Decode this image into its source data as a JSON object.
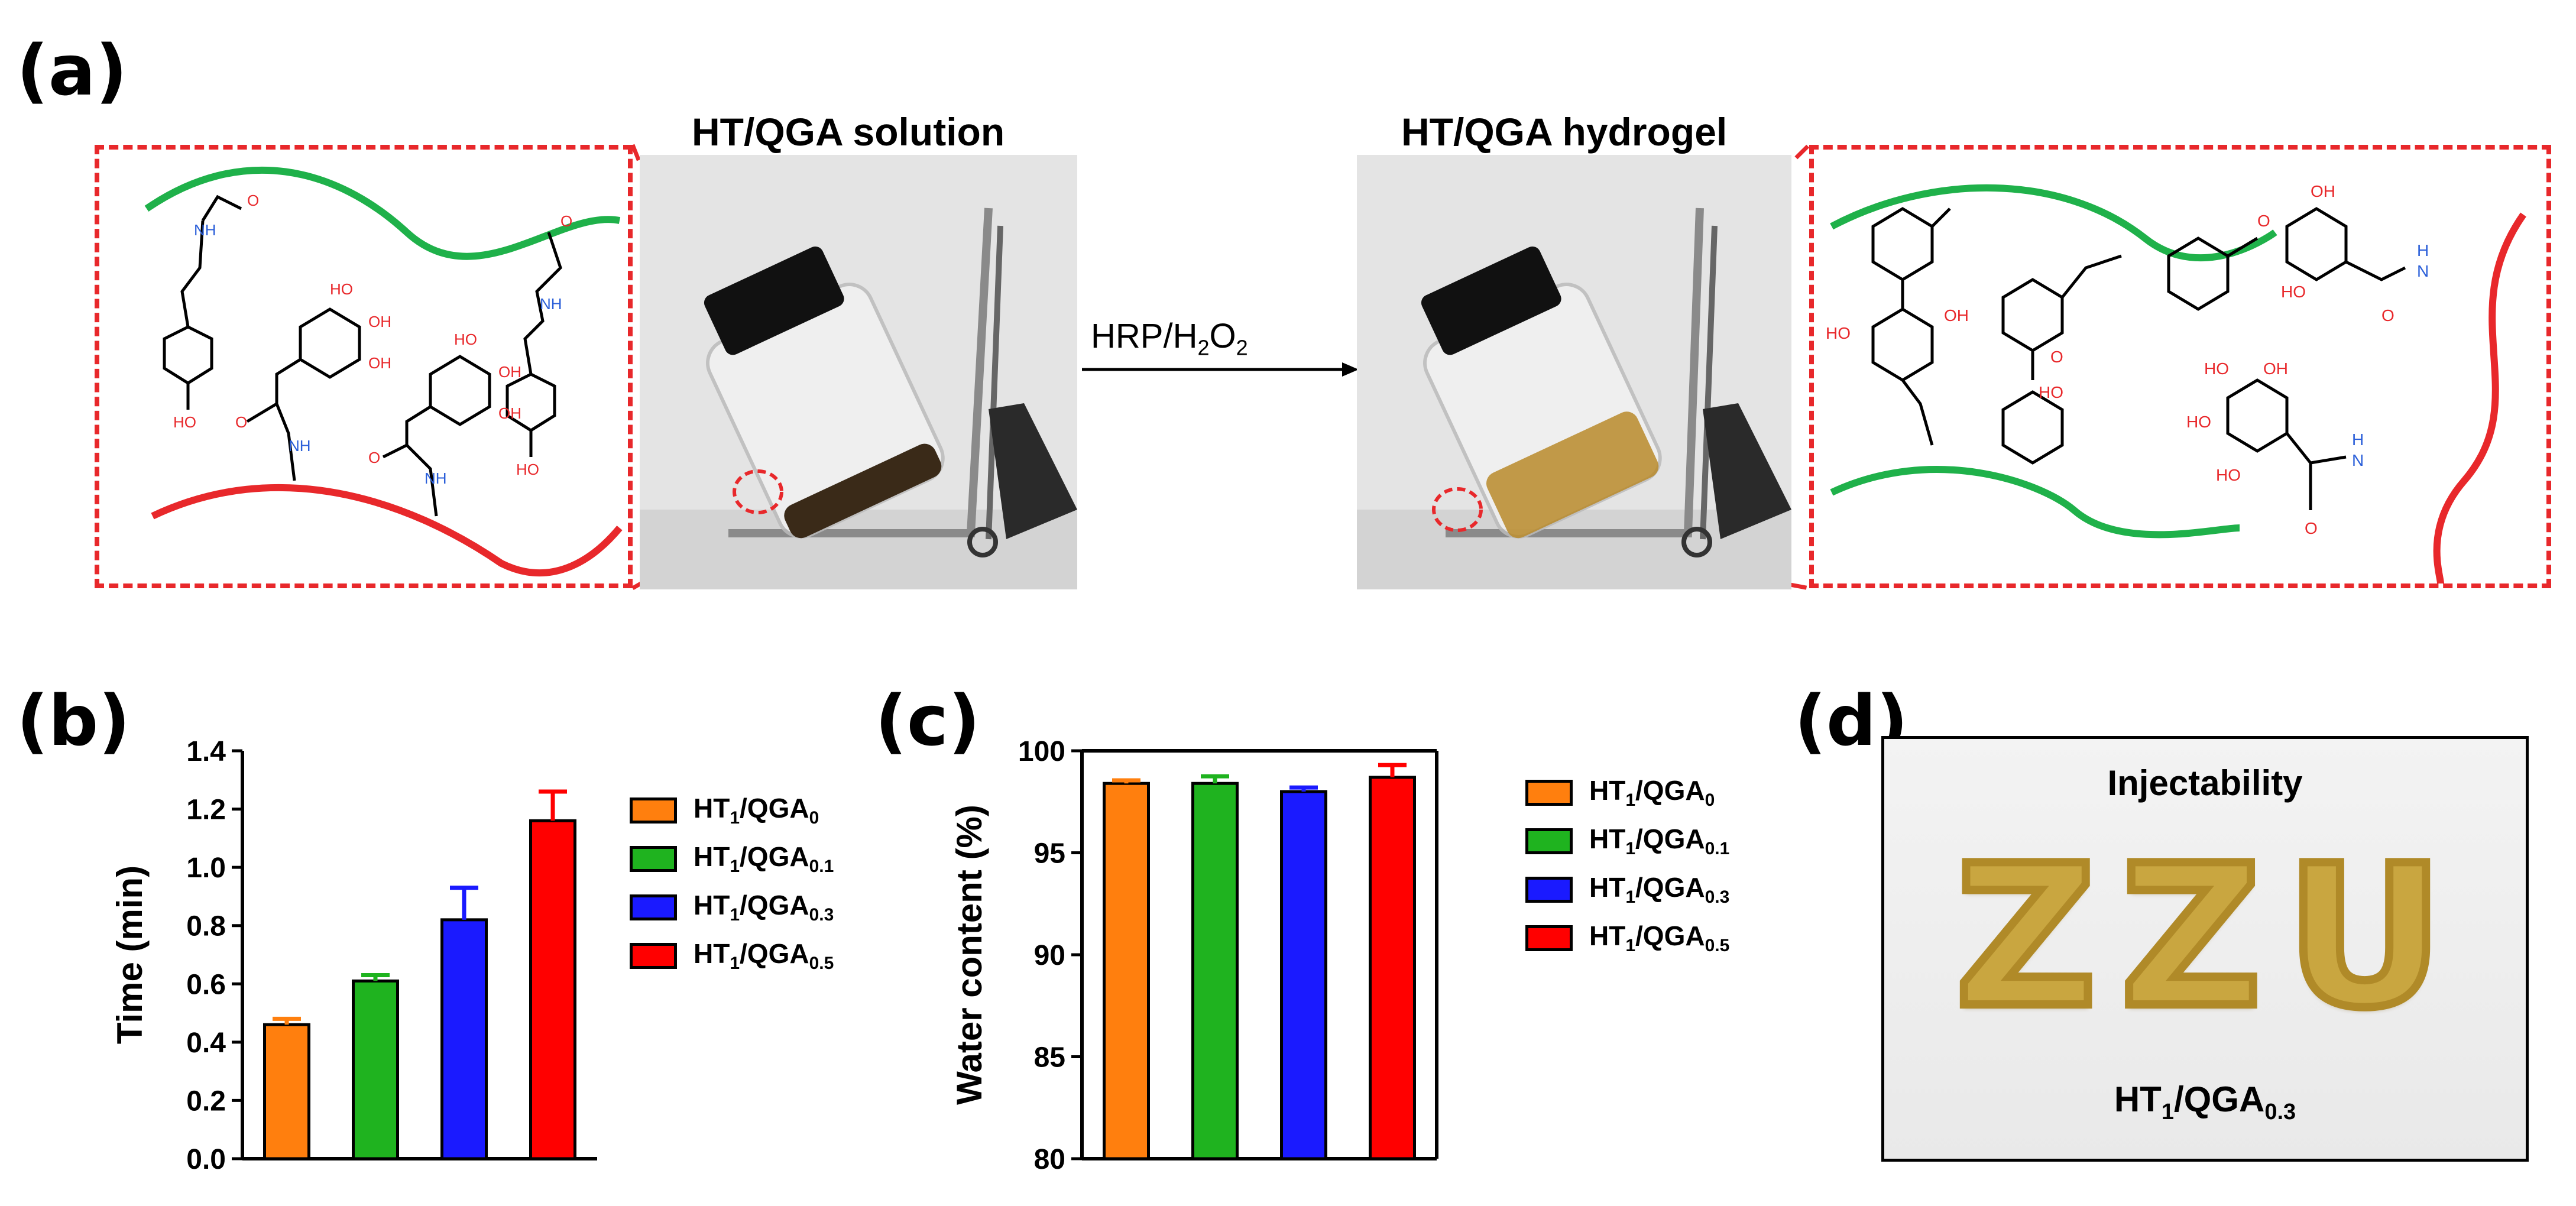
{
  "panels": {
    "a": "(a)",
    "b": "(b)",
    "c": "(c)",
    "d": "(d)"
  },
  "panel_a": {
    "solution_title": "HT/QGA solution",
    "hydrogel_title": "HT/QGA hydrogel",
    "reaction_label": "HRP/H",
    "reaction_sub": "2",
    "reaction_o": "O",
    "reaction_sub2": "2",
    "chem_labels": {
      "oh": "HO",
      "nh": "NH",
      "o": "O",
      "oh2": "OH",
      "h": "H",
      "n": "N"
    }
  },
  "panel_d": {
    "title": "Injectability",
    "letters": "ZZU",
    "caption_ht": "HT",
    "caption_sub1": "1",
    "caption_qga": "/QGA",
    "caption_sub2": "0.3"
  },
  "colors": {
    "orange": "#ff7f0e",
    "green": "#1fb31f",
    "blue": "#1a1aff",
    "red": "#ff0000",
    "chain_green": "#1fb14a",
    "chain_red": "#e8282b"
  },
  "chart_data": [
    {
      "type": "bar",
      "panel": "b",
      "categories": [
        "HT1/QGA0",
        "HT1/QGA0.1",
        "HT1/QGA0.3",
        "HT1/QGA0.5"
      ],
      "values": [
        0.46,
        0.61,
        0.82,
        1.16
      ],
      "errors": [
        0.02,
        0.02,
        0.11,
        0.1
      ],
      "ylabel": "Time (min)",
      "ylim": [
        0,
        1.4
      ],
      "yticks": [
        "0.0",
        "0.2",
        "0.4",
        "0.6",
        "0.8",
        "1.0",
        "1.2",
        "1.4"
      ],
      "legend": [
        {
          "main": "HT",
          "sub1": "1",
          "mid": "/QGA",
          "sub2": "0"
        },
        {
          "main": "HT",
          "sub1": "1",
          "mid": "/QGA",
          "sub2": "0.1"
        },
        {
          "main": "HT",
          "sub1": "1",
          "mid": "/QGA",
          "sub2": "0.3"
        },
        {
          "main": "HT",
          "sub1": "1",
          "mid": "/QGA",
          "sub2": "0.5"
        }
      ],
      "legend_placement": "right",
      "grid": false
    },
    {
      "type": "bar",
      "panel": "c",
      "categories": [
        "HT1/QGA0",
        "HT1/QGA0.1",
        "HT1/QGA0.3",
        "HT1/QGA0.5"
      ],
      "values": [
        98.4,
        98.4,
        98.0,
        98.7
      ],
      "errors": [
        0.15,
        0.35,
        0.2,
        0.6
      ],
      "ylabel": "Water content (%)",
      "ylim": [
        80,
        100
      ],
      "yticks": [
        "80",
        "85",
        "90",
        "95",
        "100"
      ],
      "legend": [
        {
          "main": "HT",
          "sub1": "1",
          "mid": "/QGA",
          "sub2": "0"
        },
        {
          "main": "HT",
          "sub1": "1",
          "mid": "/QGA",
          "sub2": "0.1"
        },
        {
          "main": "HT",
          "sub1": "1",
          "mid": "/QGA",
          "sub2": "0.3"
        },
        {
          "main": "HT",
          "sub1": "1",
          "mid": "/QGA",
          "sub2": "0.5"
        }
      ],
      "legend_placement": "right",
      "grid": false
    }
  ]
}
